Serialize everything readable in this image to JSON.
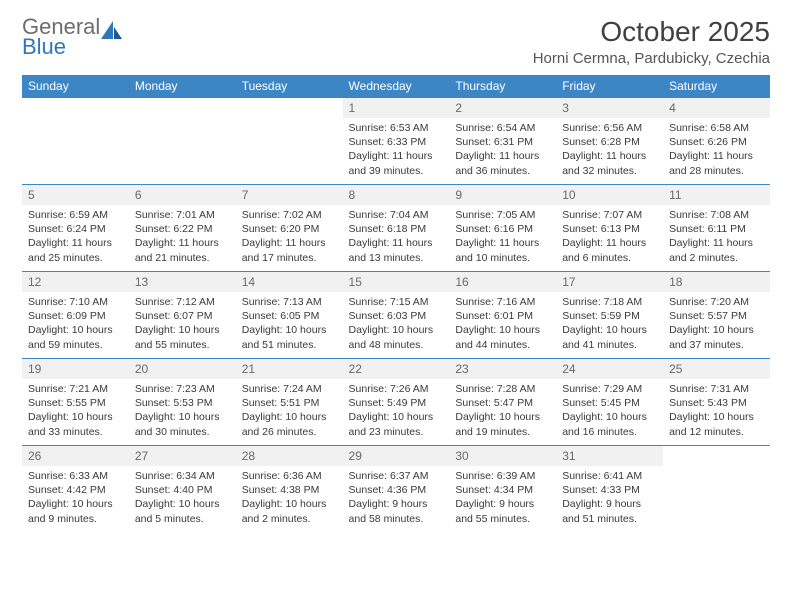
{
  "brand": {
    "name1": "General",
    "name2": "Blue"
  },
  "title": "October 2025",
  "location": "Horni Cermna, Pardubicky, Czechia",
  "colors": {
    "accent": "#3d86c6",
    "dayBg": "#f1f1f1",
    "text": "#333333"
  },
  "weekdays": [
    "Sunday",
    "Monday",
    "Tuesday",
    "Wednesday",
    "Thursday",
    "Friday",
    "Saturday"
  ],
  "grid": {
    "rows": 5,
    "cols": 7
  },
  "days": [
    {
      "empty": true
    },
    {
      "empty": true
    },
    {
      "empty": true
    },
    {
      "n": "1",
      "sr": "Sunrise: 6:53 AM",
      "ss": "Sunset: 6:33 PM",
      "d1": "Daylight: 11 hours",
      "d2": "and 39 minutes."
    },
    {
      "n": "2",
      "sr": "Sunrise: 6:54 AM",
      "ss": "Sunset: 6:31 PM",
      "d1": "Daylight: 11 hours",
      "d2": "and 36 minutes."
    },
    {
      "n": "3",
      "sr": "Sunrise: 6:56 AM",
      "ss": "Sunset: 6:28 PM",
      "d1": "Daylight: 11 hours",
      "d2": "and 32 minutes."
    },
    {
      "n": "4",
      "sr": "Sunrise: 6:58 AM",
      "ss": "Sunset: 6:26 PM",
      "d1": "Daylight: 11 hours",
      "d2": "and 28 minutes."
    },
    {
      "n": "5",
      "sr": "Sunrise: 6:59 AM",
      "ss": "Sunset: 6:24 PM",
      "d1": "Daylight: 11 hours",
      "d2": "and 25 minutes."
    },
    {
      "n": "6",
      "sr": "Sunrise: 7:01 AM",
      "ss": "Sunset: 6:22 PM",
      "d1": "Daylight: 11 hours",
      "d2": "and 21 minutes."
    },
    {
      "n": "7",
      "sr": "Sunrise: 7:02 AM",
      "ss": "Sunset: 6:20 PM",
      "d1": "Daylight: 11 hours",
      "d2": "and 17 minutes."
    },
    {
      "n": "8",
      "sr": "Sunrise: 7:04 AM",
      "ss": "Sunset: 6:18 PM",
      "d1": "Daylight: 11 hours",
      "d2": "and 13 minutes."
    },
    {
      "n": "9",
      "sr": "Sunrise: 7:05 AM",
      "ss": "Sunset: 6:16 PM",
      "d1": "Daylight: 11 hours",
      "d2": "and 10 minutes."
    },
    {
      "n": "10",
      "sr": "Sunrise: 7:07 AM",
      "ss": "Sunset: 6:13 PM",
      "d1": "Daylight: 11 hours",
      "d2": "and 6 minutes."
    },
    {
      "n": "11",
      "sr": "Sunrise: 7:08 AM",
      "ss": "Sunset: 6:11 PM",
      "d1": "Daylight: 11 hours",
      "d2": "and 2 minutes."
    },
    {
      "n": "12",
      "sr": "Sunrise: 7:10 AM",
      "ss": "Sunset: 6:09 PM",
      "d1": "Daylight: 10 hours",
      "d2": "and 59 minutes."
    },
    {
      "n": "13",
      "sr": "Sunrise: 7:12 AM",
      "ss": "Sunset: 6:07 PM",
      "d1": "Daylight: 10 hours",
      "d2": "and 55 minutes."
    },
    {
      "n": "14",
      "sr": "Sunrise: 7:13 AM",
      "ss": "Sunset: 6:05 PM",
      "d1": "Daylight: 10 hours",
      "d2": "and 51 minutes."
    },
    {
      "n": "15",
      "sr": "Sunrise: 7:15 AM",
      "ss": "Sunset: 6:03 PM",
      "d1": "Daylight: 10 hours",
      "d2": "and 48 minutes."
    },
    {
      "n": "16",
      "sr": "Sunrise: 7:16 AM",
      "ss": "Sunset: 6:01 PM",
      "d1": "Daylight: 10 hours",
      "d2": "and 44 minutes."
    },
    {
      "n": "17",
      "sr": "Sunrise: 7:18 AM",
      "ss": "Sunset: 5:59 PM",
      "d1": "Daylight: 10 hours",
      "d2": "and 41 minutes."
    },
    {
      "n": "18",
      "sr": "Sunrise: 7:20 AM",
      "ss": "Sunset: 5:57 PM",
      "d1": "Daylight: 10 hours",
      "d2": "and 37 minutes."
    },
    {
      "n": "19",
      "sr": "Sunrise: 7:21 AM",
      "ss": "Sunset: 5:55 PM",
      "d1": "Daylight: 10 hours",
      "d2": "and 33 minutes."
    },
    {
      "n": "20",
      "sr": "Sunrise: 7:23 AM",
      "ss": "Sunset: 5:53 PM",
      "d1": "Daylight: 10 hours",
      "d2": "and 30 minutes."
    },
    {
      "n": "21",
      "sr": "Sunrise: 7:24 AM",
      "ss": "Sunset: 5:51 PM",
      "d1": "Daylight: 10 hours",
      "d2": "and 26 minutes."
    },
    {
      "n": "22",
      "sr": "Sunrise: 7:26 AM",
      "ss": "Sunset: 5:49 PM",
      "d1": "Daylight: 10 hours",
      "d2": "and 23 minutes."
    },
    {
      "n": "23",
      "sr": "Sunrise: 7:28 AM",
      "ss": "Sunset: 5:47 PM",
      "d1": "Daylight: 10 hours",
      "d2": "and 19 minutes."
    },
    {
      "n": "24",
      "sr": "Sunrise: 7:29 AM",
      "ss": "Sunset: 5:45 PM",
      "d1": "Daylight: 10 hours",
      "d2": "and 16 minutes."
    },
    {
      "n": "25",
      "sr": "Sunrise: 7:31 AM",
      "ss": "Sunset: 5:43 PM",
      "d1": "Daylight: 10 hours",
      "d2": "and 12 minutes."
    },
    {
      "n": "26",
      "sr": "Sunrise: 6:33 AM",
      "ss": "Sunset: 4:42 PM",
      "d1": "Daylight: 10 hours",
      "d2": "and 9 minutes."
    },
    {
      "n": "27",
      "sr": "Sunrise: 6:34 AM",
      "ss": "Sunset: 4:40 PM",
      "d1": "Daylight: 10 hours",
      "d2": "and 5 minutes."
    },
    {
      "n": "28",
      "sr": "Sunrise: 6:36 AM",
      "ss": "Sunset: 4:38 PM",
      "d1": "Daylight: 10 hours",
      "d2": "and 2 minutes."
    },
    {
      "n": "29",
      "sr": "Sunrise: 6:37 AM",
      "ss": "Sunset: 4:36 PM",
      "d1": "Daylight: 9 hours",
      "d2": "and 58 minutes."
    },
    {
      "n": "30",
      "sr": "Sunrise: 6:39 AM",
      "ss": "Sunset: 4:34 PM",
      "d1": "Daylight: 9 hours",
      "d2": "and 55 minutes."
    },
    {
      "n": "31",
      "sr": "Sunrise: 6:41 AM",
      "ss": "Sunset: 4:33 PM",
      "d1": "Daylight: 9 hours",
      "d2": "and 51 minutes."
    },
    {
      "empty": true
    }
  ]
}
